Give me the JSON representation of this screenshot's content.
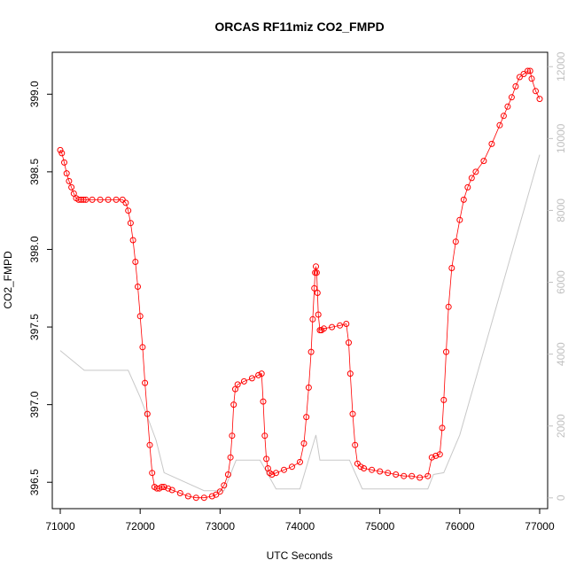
{
  "chart_data": {
    "type": "scatter",
    "title": "ORCAS RF11miz CO2_FMPD",
    "xlabel": "UTC Seconds",
    "ylabel": "CO2_FMPD",
    "xlim": [
      70900,
      77100
    ],
    "ylim": [
      396.33,
      399.27
    ],
    "x_ticks": [
      71000,
      72000,
      73000,
      74000,
      75000,
      76000,
      77000
    ],
    "y_ticks": [
      396.5,
      397.0,
      397.5,
      398.0,
      398.5,
      399.0
    ],
    "y2_ticks": [
      0,
      2000,
      4000,
      6000,
      8000,
      10000,
      12000
    ],
    "y2lim": [
      -300,
      12400
    ],
    "grid": false,
    "colors": {
      "co2": "#ff0000",
      "altitude": "#c8c8c8",
      "frame": "#000000",
      "right_axis": "#c0c0c0"
    },
    "series": [
      {
        "role": "co2_points",
        "x": [
          71000,
          71020,
          71050,
          71080,
          71110,
          71140,
          71170,
          71200,
          71230,
          71260,
          71290,
          71320,
          71400,
          71500,
          71600,
          71700,
          71780,
          71820,
          71850,
          71880,
          71910,
          71940,
          71970,
          72000,
          72030,
          72060,
          72090,
          72120,
          72150,
          72180,
          72210,
          72240,
          72270,
          72300,
          72350,
          72400,
          72500,
          72600,
          72700,
          72800,
          72900,
          72950,
          73000,
          73050,
          73100,
          73130,
          73150,
          73170,
          73190,
          73220,
          73300,
          73400,
          73480,
          73520,
          73540,
          73560,
          73580,
          73600,
          73620,
          73650,
          73700,
          73800,
          73900,
          74000,
          74050,
          74080,
          74110,
          74140,
          74160,
          74180,
          74190,
          74200,
          74210,
          74220,
          74230,
          74250,
          74270,
          74300,
          74400,
          74500,
          74580,
          74610,
          74630,
          74660,
          74690,
          74720,
          74760,
          74800,
          74900,
          75000,
          75100,
          75200,
          75300,
          75400,
          75500,
          75600,
          75650,
          75700,
          75750,
          75780,
          75800,
          75830,
          75860,
          75900,
          75950,
          76000,
          76050,
          76100,
          76150,
          76200,
          76300,
          76400,
          76500,
          76550,
          76600,
          76650,
          76700,
          76750,
          76800,
          76850,
          76880,
          76900,
          76950,
          77000
        ],
        "y": [
          398.64,
          398.62,
          398.56,
          398.49,
          398.44,
          398.4,
          398.36,
          398.33,
          398.32,
          398.32,
          398.32,
          398.32,
          398.32,
          398.32,
          398.32,
          398.32,
          398.32,
          398.3,
          398.25,
          398.17,
          398.06,
          397.92,
          397.76,
          397.57,
          397.37,
          397.14,
          396.94,
          396.74,
          396.56,
          396.47,
          396.46,
          396.46,
          396.47,
          396.47,
          396.46,
          396.45,
          396.43,
          396.41,
          396.4,
          396.4,
          396.41,
          396.42,
          396.44,
          396.48,
          396.55,
          396.66,
          396.8,
          397.0,
          397.1,
          397.13,
          397.15,
          397.17,
          397.19,
          397.2,
          397.02,
          396.8,
          396.65,
          396.59,
          396.56,
          396.55,
          396.56,
          396.58,
          396.6,
          396.63,
          396.75,
          396.92,
          397.11,
          397.34,
          397.55,
          397.75,
          397.85,
          397.89,
          397.85,
          397.72,
          397.58,
          397.48,
          397.48,
          397.49,
          397.5,
          397.51,
          397.52,
          397.4,
          397.2,
          396.94,
          396.74,
          396.62,
          396.6,
          396.59,
          396.58,
          396.57,
          396.56,
          396.55,
          396.54,
          396.54,
          396.53,
          396.54,
          396.66,
          396.67,
          396.68,
          396.85,
          397.03,
          397.34,
          397.63,
          397.88,
          398.05,
          398.19,
          398.32,
          398.4,
          398.46,
          398.5,
          398.57,
          398.68,
          398.8,
          398.86,
          398.92,
          398.98,
          399.05,
          399.11,
          399.13,
          399.15,
          399.15,
          399.1,
          399.02,
          398.97
        ]
      },
      {
        "role": "altitude_line",
        "x": [
          71000,
          71300,
          71850,
          72000,
          72200,
          72300,
          72800,
          73050,
          73200,
          73500,
          73700,
          74000,
          74200,
          74250,
          74500,
          74620,
          74780,
          75000,
          75600,
          75670,
          75800,
          76000,
          77000
        ],
        "y": [
          4100,
          3550,
          3550,
          2800,
          1600,
          700,
          200,
          200,
          1050,
          1050,
          250,
          250,
          1750,
          1050,
          1050,
          1050,
          250,
          250,
          250,
          650,
          700,
          1750,
          9550
        ]
      }
    ]
  }
}
